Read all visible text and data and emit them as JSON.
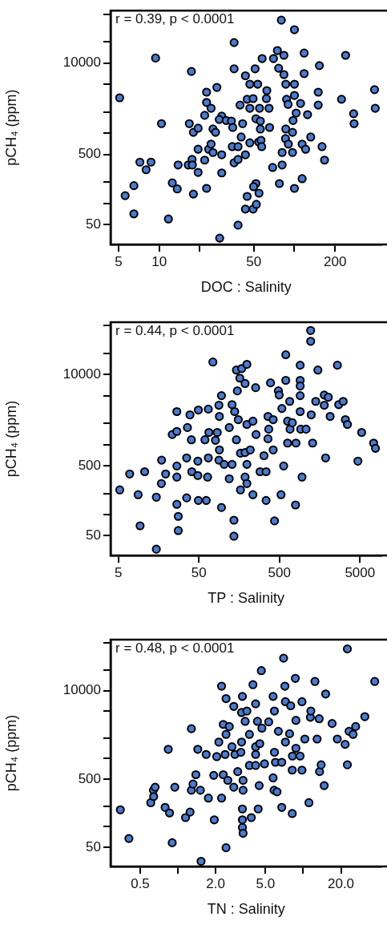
{
  "chart_data": [
    {
      "type": "scatter",
      "xlabel": "DOC : Salinity",
      "ylabel": "pCH₄ (ppm)",
      "annotations": [
        "r = 0.39, p < 0.0001"
      ],
      "log": "xy",
      "marker": "circle",
      "color": "#4a7bd0",
      "xlim": [
        4.37,
        442
      ],
      "ylim": [
        26,
        56000
      ],
      "xticks": [
        5,
        10,
        {
          "value": 20,
          "label": null
        },
        50,
        {
          "value": 100,
          "label": null
        },
        200
      ],
      "yticks": [
        50,
        {
          "value": 100,
          "label": null
        },
        {
          "value": 200,
          "label": null
        },
        500,
        {
          "value": 1000,
          "label": null
        },
        {
          "value": 2000,
          "label": null
        },
        {
          "value": 5000,
          "label": null
        },
        10000,
        {
          "value": 20000,
          "label": null
        },
        {
          "value": 50000,
          "label": null
        }
      ],
      "x": [
        5.1,
        9.4,
        10.4,
        7.2,
        8.0,
        8.7,
        5.6,
        6.5,
        6.5,
        11.7,
        12.5,
        13.6,
        13.8,
        17.3,
        16.7,
        17.9,
        19.4,
        16.4,
        17.5,
        17.6,
        19.4,
        17.9,
        19.4,
        21.7,
        22.4,
        22.4,
        22.4,
        21.7,
        24.2,
        26.7,
        23.2,
        24.2,
        25.0,
        25.0,
        26.1,
        29.0,
        29.0,
        28.0,
        29.0,
        27.8,
        31.3,
        34.2,
        35.8,
        35.8,
        35.0,
        34.7,
        35.8,
        38.3,
        38.3,
        40.4,
        41.4,
        38.3,
        39.6,
        43.4,
        43.4,
        44.7,
        43.4,
        44.7,
        46.8,
        46.8,
        46.8,
        49.5,
        49.5,
        51.2,
        52.3,
        51.9,
        54.7,
        53.5,
        51.9,
        54.4,
        55.2,
        56.0,
        56.0,
        56.6,
        57.7,
        57.3,
        62.5,
        62,
        64.9,
        65.5,
        69.0,
        70.0,
        74.8,
        76.4,
        80.0,
        77.4,
        81.1,
        81.1,
        83.6,
        83.6,
        86.3,
        87.5,
        86.3,
        85.9,
        90.2,
        89.8,
        96.8,
        96.8,
        100,
        100,
        100,
        100,
        97.7,
        103,
        111,
        114,
        114,
        118,
        118,
        121,
        125,
        132,
        150,
        150,
        153,
        160,
        167,
        223,
        239,
        274,
        276,
        391,
        396,
        49.9
      ],
      "values": [
        3200,
        11800,
        1370,
        388,
        302,
        388,
        129,
        179,
        71,
        60,
        196,
        161,
        353,
        7600,
        1370,
        1030,
        1180,
        353,
        423,
        353,
        277,
        136,
        592,
        414,
        164,
        3850,
        2750,
        1800,
        2270,
        4500,
        592,
        700,
        532,
        1150,
        1030,
        494,
        272,
        32,
        1750,
        1570,
        1520,
        1490,
        19600,
        8300,
        1210,
        644,
        380,
        644,
        423,
        883,
        1370,
        49,
        2520,
        83,
        494,
        126,
        6600,
        3050,
        5000,
        730,
        2270,
        3120,
        83,
        8300,
        97,
        192,
        140,
        5000,
        1610,
        753,
        2270,
        1490,
        1150,
        794,
        11600,
        644,
        4050,
        3120,
        2270,
        1210,
        325,
        11600,
        15100,
        8450,
        40900,
        192,
        353,
        532,
        12900,
        6850,
        5000,
        3050,
        1150,
        838,
        700,
        2580,
        1030,
        532,
        29900,
        164,
        5000,
        3460,
        1520,
        1940,
        2660,
        225,
        700,
        13900,
        7080,
        592,
        1840,
        883,
        3850,
        2520,
        9200,
        644,
        414,
        3050,
        12900,
        1900,
        1370,
        4180,
        2270,
        173
      ]
    },
    {
      "type": "scatter",
      "xlabel": "TP : Salinity",
      "ylabel": "pCH₄ (ppm)",
      "annotations": [
        "r = 0.44, p < 0.0001"
      ],
      "log": "xy",
      "marker": "circle",
      "color": "#4a7bd0",
      "xlim": [
        4.0,
        9300
      ],
      "ylim": [
        26,
        56000
      ],
      "xticks": [
        5,
        50,
        500,
        5000
      ],
      "yticks": [
        50,
        {
          "value": 100,
          "label": null
        },
        {
          "value": 200,
          "label": null
        },
        500,
        {
          "value": 1000,
          "label": null
        },
        {
          "value": 2000,
          "label": null
        },
        {
          "value": 5000,
          "label": null
        },
        10000,
        {
          "value": 20000,
          "label": null
        },
        {
          "value": 50000,
          "label": null
        }
      ],
      "x": [
        5.2,
        6.9,
        8.8,
        9.3,
        10.6,
        14.8,
        14.8,
        17.2,
        17.1,
        19.3,
        23.3,
        26.6,
        26.6,
        26.6,
        26.6,
        26.6,
        27.7,
        27.7,
        35.2,
        35.2,
        36,
        38.7,
        40.3,
        40.8,
        48.5,
        48.5,
        49.2,
        49.2,
        59.4,
        61.7,
        64,
        65.4,
        65.4,
        66.5,
        74.5,
        80.2,
        84.5,
        88.5,
        89.8,
        95.3,
        89.8,
        88.5,
        95.3,
        103,
        119,
        119,
        129,
        129,
        136,
        136,
        139,
        146,
        146,
        150,
        154,
        164,
        164,
        170,
        161,
        187,
        187,
        187,
        197,
        197,
        197,
        197,
        217,
        234,
        234,
        253,
        256,
        287,
        321,
        341,
        341,
        360,
        368,
        360,
        387,
        418,
        434,
        418,
        485,
        496,
        523,
        536,
        564,
        599,
        599,
        631,
        631,
        670,
        676,
        723,
        791,
        802,
        904,
        904,
        904,
        904,
        904,
        918,
        953,
        1070,
        1220,
        1220,
        1240,
        1290,
        1410,
        1500,
        1800,
        1870,
        1800,
        2020,
        2130,
        2620,
        2720,
        3090,
        3290,
        3490,
        4710,
        5240,
        7380,
        7780
      ],
      "values": [
        225,
        380,
        192,
        69,
        409,
        177,
        32,
        598,
        277,
        380,
        1390,
        1540,
        2960,
        494,
        343,
        140,
        94,
        59,
        173,
        644,
        1750,
        2660,
        1170,
        409,
        361,
        580,
        3120,
        159,
        1170,
        159,
        343,
        3210,
        644,
        1490,
        15100,
        1150,
        1490,
        3650,
        2520,
        5000,
        838,
        598,
        126,
        521,
        325,
        1750,
        521,
        3720,
        83,
        49,
        2960,
        1170,
        11600,
        5850,
        2270,
        225,
        753,
        12200,
        8900,
        7460,
        343,
        769,
        14000,
        1940,
        521,
        277,
        838,
        192,
        2160,
        6500,
        1390,
        409,
        693,
        409,
        159,
        1210,
        1660,
        2520,
        7620,
        2270,
        81,
        838,
        5850,
        5100,
        192,
        3280,
        494,
        19200,
        8280,
        2160,
        1050,
        4140,
        1660,
        2050,
        137,
        1050,
        13600,
        8280,
        6860,
        5000,
        2960,
        1660,
        343,
        1660,
        42700,
        29900,
        2660,
        1050,
        4140,
        11600,
        5100,
        644,
        3650,
        4750,
        2520,
        13600,
        3720,
        4140,
        2270,
        1940,
        580,
        1490,
        1050,
        883
      ]
    },
    {
      "type": "scatter",
      "xlabel": "TN : Salinity",
      "ylabel": "pCH₄ (ppm)",
      "annotations": [
        "r = 0.48, p < 0.0001"
      ],
      "log": "xy",
      "marker": "circle",
      "color": "#4a7bd0",
      "xlim": [
        0.29,
        42.3
      ],
      "ylim": [
        26,
        56000
      ],
      "xticks": [
        0.5,
        {
          "value": 1,
          "label": null
        },
        {
          "value": 2,
          "label": "2.0"
        },
        {
          "value": 5,
          "label": "5.0"
        },
        {
          "value": 10,
          "label": null
        },
        {
          "value": 20,
          "label": "20.0"
        }
      ],
      "yticks": [
        50,
        {
          "value": 100,
          "label": null
        },
        {
          "value": 200,
          "label": null
        },
        500,
        {
          "value": 1000,
          "label": null
        },
        {
          "value": 2000,
          "label": null
        },
        {
          "value": 5000,
          "label": null
        },
        10000,
        {
          "value": 20000,
          "label": null
        },
        {
          "value": 50000,
          "label": null
        }
      ],
      "x": [
        0.347,
        0.406,
        0.607,
        0.637,
        0.658,
        0.64,
        0.79,
        0.857,
        0.837,
        0.9,
        0.944,
        1.15,
        1.25,
        1.28,
        1.28,
        1.32,
        1.39,
        1.44,
        1.51,
        1.53,
        1.68,
        1.75,
        1.95,
        1.93,
        2.04,
        2.12,
        2.23,
        2.23,
        2.3,
        2.3,
        2.38,
        2.42,
        2.42,
        2.42,
        2.5,
        2.57,
        2.7,
        2.79,
        2.79,
        2.85,
        3.0,
        3.18,
        3.22,
        3.22,
        3.27,
        3.27,
        3.27,
        3.27,
        3.31,
        3.31,
        3.31,
        3.44,
        3.55,
        3.72,
        3.72,
        3.85,
        3.97,
        4.17,
        4.17,
        4.17,
        4.17,
        4.31,
        4.37,
        4.45,
        4.5,
        4.63,
        4.68,
        4.91,
        5.3,
        5.75,
        5.75,
        5.89,
        5.89,
        5.85,
        6.18,
        6.0,
        6.33,
        6.74,
        6.74,
        6.97,
        7.14,
        7.21,
        7.21,
        7.78,
        7.94,
        8.17,
        8.17,
        8.2,
        8.65,
        8.74,
        8.74,
        9.44,
        9.77,
        9.77,
        10.3,
        11.1,
        11.4,
        11.5,
        12.4,
        12.9,
        13.4,
        13.5,
        13.9,
        14.7,
        15.1,
        17.0,
        18.7,
        21.6,
        22.5,
        22.5,
        23.2,
        25.0,
        26.2,
        31.0,
        37.2
      ],
      "values": [
        177,
        67,
        225,
        343,
        380,
        277,
        192,
        159,
        1370,
        58,
        380,
        136,
        164,
        343,
        2750,
        423,
        580,
        1370,
        343,
        31,
        1150,
        263,
        126,
        567,
        1070,
        1750,
        263,
        11600,
        580,
        3180,
        1150,
        7620,
        2270,
        49,
        480,
        2960,
        1490,
        5850,
        380,
        1150,
        644,
        1240,
        1750,
        4750,
        8200,
        182,
        126,
        97,
        80,
        480,
        343,
        3530,
        5000,
        2270,
        794,
        136,
        12200,
        6370,
        1490,
        1150,
        794,
        3530,
        182,
        401,
        1660,
        19600,
        2800,
        838,
        3460,
        521,
        8200,
        5000,
        1240,
        343,
        325,
        883,
        2520,
        192,
        883,
        29900,
        11600,
        6860,
        1750,
        2320,
        5980,
        678,
        156,
        1090,
        15100,
        3650,
        1420,
        1090,
        6860,
        678,
        1940,
        225,
        4050,
        5000,
        13600,
        1940,
        3850,
        644,
        811,
        401,
        8900,
        3280,
        1940,
        1620,
        40900,
        811,
        2520,
        2270,
        2960,
        4140,
        13600
      ]
    }
  ]
}
